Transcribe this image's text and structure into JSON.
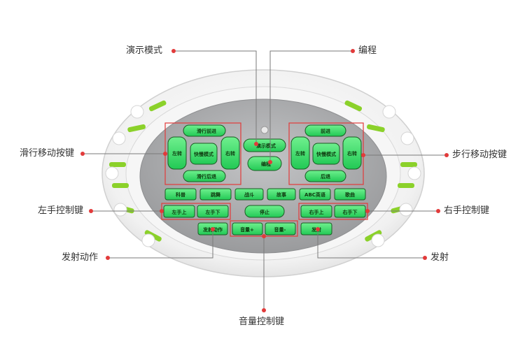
{
  "callouts": {
    "demo_mode": "演示模式",
    "programming": "编程",
    "glide_move_keys": "滑行移动按键",
    "walk_move_keys": "步行移动按键",
    "left_hand_keys": "左手控制键",
    "right_hand_keys": "右手控制键",
    "fire_action": "发射动作",
    "fire": "发射",
    "volume_keys": "音量控制键"
  },
  "keys": {
    "glide_forward": "滑行前进",
    "glide_back": "滑行后退",
    "glide_left": "左转",
    "glide_right": "右转",
    "glide_speed": "快慢模式",
    "walk_forward": "前进",
    "walk_back": "后退",
    "walk_left": "左转",
    "walk_right": "右转",
    "walk_speed": "快慢模式",
    "demo_mode": "演示模式",
    "program": "编程",
    "science": "科普",
    "dance": "跳舞",
    "fight": "战斗",
    "story": "故事",
    "english": "ABC英语",
    "song": "歌曲",
    "left_hand_up": "左手上",
    "left_hand_down": "左手下",
    "stop": "停止",
    "right_hand_up": "右手上",
    "right_hand_down": "右手下",
    "fire_action": "发射动作",
    "volume_up": "音量+",
    "volume_down": "音量-",
    "fire": "发射"
  },
  "colors": {
    "key_green": "#39e36a",
    "panel_gray": "#a9aaac",
    "highlight_red": "#e23a3a",
    "accent_lime": "#8bd12a",
    "leader_gray": "#7a7a7a"
  }
}
